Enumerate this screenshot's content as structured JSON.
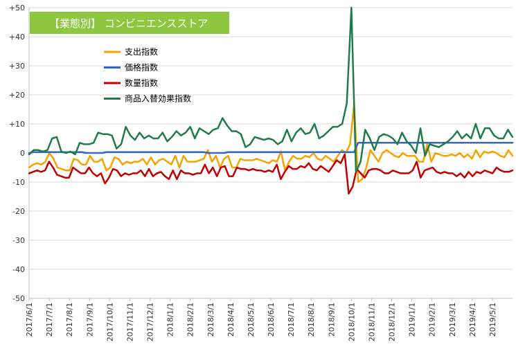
{
  "chart_data": {
    "type": "line",
    "title": "【業態別】 コンビニエンスストア",
    "title_bg": "#8DC63F",
    "ylim": [
      -50,
      50
    ],
    "y_ticks": [
      "-50",
      "-40",
      "-30",
      "-20",
      "-10",
      "0",
      "+10",
      "+20",
      "+30",
      "+40",
      "+50"
    ],
    "y_tick_values": [
      -50,
      -40,
      -30,
      -20,
      -10,
      0,
      10,
      20,
      30,
      40,
      50
    ],
    "x_tick_labels": [
      "2017/6/1",
      "2017/7/1",
      "2017/8/1",
      "2017/9/1",
      "2017/10/1",
      "2017/11/1",
      "2017/12/1",
      "2018/1/1",
      "2018/2/1",
      "2018/3/1",
      "2018/4/1",
      "2018/5/1",
      "2018/6/1",
      "2018/7/1",
      "2018/8/1",
      "2018/9/1",
      "2018/10/1",
      "2018/11/1",
      "2018/12/1",
      "2019/1/1",
      "2019/2/1",
      "2019/3/1",
      "2019/4/1",
      "2019/5/1"
    ],
    "grid": true,
    "legend_position": "upper-left",
    "series": [
      {
        "name": "支出指数",
        "color": "#F5A300",
        "values": [
          -5,
          -4,
          -3.5,
          -4,
          -3,
          0,
          -2,
          -5,
          -5.5,
          -6,
          -6,
          -2,
          -2.5,
          -4,
          -4,
          -1,
          -3,
          -3,
          -2,
          -6,
          -5,
          -1.5,
          -2,
          -4,
          -3,
          -3.5,
          -3,
          -3,
          -2,
          -4,
          -1.5,
          -4,
          -2.5,
          -2,
          -3,
          -4,
          -1,
          -5,
          -1,
          -3,
          -3,
          -3,
          -2.5,
          -2,
          1,
          -3,
          -1,
          -5,
          -2,
          -1,
          -5,
          -5,
          -2,
          -2.5,
          -2.5,
          -2.5,
          -2,
          -2.5,
          -3,
          -3.5,
          -2.5,
          -3,
          0.5,
          -6,
          -3,
          -1,
          -2,
          -2,
          -1,
          -1.5,
          0,
          -2,
          -2.5,
          -1,
          -2,
          -3,
          -1,
          1,
          0,
          3,
          17,
          -10,
          -9,
          -5,
          1,
          -1,
          -3,
          0,
          1,
          0,
          -1,
          -1.5,
          0,
          -1,
          -1,
          -1,
          -3,
          -3,
          3,
          -3,
          0,
          -0.5,
          -1,
          -1,
          -0.5,
          -1,
          0,
          -1.5,
          -0.5,
          -2,
          1,
          -1.5,
          0.5,
          0,
          0.5,
          0,
          -1,
          -1.5,
          1,
          -1
        ]
      },
      {
        "name": "価格指数",
        "color": "#3366C5",
        "values": [
          0,
          0.3,
          0.3,
          0.3,
          0.3,
          0.3,
          0.3,
          0.3,
          0.3,
          0.3,
          0.3,
          0.3,
          0.3,
          0.3,
          0,
          0,
          0,
          0,
          0,
          0.3,
          0.3,
          0.3,
          0.3,
          0.3,
          0.3,
          0.3,
          0.3,
          0.3,
          0.3,
          0.3,
          0.3,
          0.3,
          0.3,
          0.3,
          0.3,
          0.3,
          0.3,
          0.3,
          0.3,
          0.3,
          0.3,
          0.3,
          0.3,
          0.3,
          0,
          0,
          0,
          0,
          0,
          0.3,
          0.3,
          0.3,
          0.3,
          0.3,
          0.3,
          0.3,
          0.3,
          0.3,
          0.3,
          0.3,
          0.3,
          0.3,
          0.3,
          0.3,
          0.3,
          0.3,
          0.3,
          0.3,
          0.3,
          0.3,
          0.3,
          0.3,
          0.3,
          0.3,
          0.3,
          0.3,
          0.3,
          0.3,
          0.3,
          0.3,
          0.3,
          3.5,
          3.5,
          3.5,
          3.5,
          3.5,
          3.5,
          3.5,
          3.5,
          3.5,
          3.5,
          3.5,
          3.5,
          3.5,
          3.5,
          3.5,
          3.5,
          3.5,
          3.5,
          3.5,
          3.5,
          3.5,
          3.5,
          3.5,
          3.5,
          3.5,
          3.5,
          3.5,
          3.5,
          3.5,
          3.5,
          3.5,
          3.5,
          3.5,
          3.5,
          3.5,
          3.5,
          3.5,
          3.5,
          3.5
        ]
      },
      {
        "name": "数量指数",
        "color": "#C00000",
        "values": [
          -7,
          -6.5,
          -6,
          -6.5,
          -6,
          -3,
          -5,
          -7.5,
          -8,
          -8.5,
          -8.5,
          -5,
          -6,
          -7,
          -7,
          -5,
          -7,
          -8,
          -7,
          -10.5,
          -8.5,
          -5.5,
          -6,
          -8,
          -7,
          -7.5,
          -7,
          -7,
          -6,
          -8,
          -5.5,
          -8,
          -7,
          -6.5,
          -8,
          -9,
          -6,
          -9,
          -6,
          -7,
          -7,
          -7.5,
          -7,
          -7,
          -4,
          -7,
          -5,
          -8,
          -5,
          -4.5,
          -8,
          -8,
          -5,
          -5.5,
          -5.5,
          -6,
          -5.5,
          -6,
          -6,
          -6.5,
          -6,
          -6.5,
          -4,
          -9,
          -6.5,
          -4.5,
          -5.5,
          -5.5,
          -4.5,
          -5,
          -3.5,
          -5.5,
          -6,
          -4.5,
          -5.5,
          -6.5,
          -4.5,
          -2.5,
          -3.5,
          -0.5,
          -14,
          -11.5,
          -5.5,
          -7,
          -8.5,
          -6,
          -5.5,
          -5.5,
          -6,
          -7,
          -7,
          -6,
          -6.5,
          -7,
          -7,
          -7,
          -6,
          -3,
          -8.5,
          -6,
          -5.5,
          -5,
          -6.5,
          -7,
          -6.5,
          -7,
          -7,
          -8,
          -7,
          -8.5,
          -6.5,
          -8,
          -6.5,
          -7,
          -6,
          -6.5,
          -7,
          -5,
          -6,
          -6.5,
          -6.5,
          -6
        ]
      },
      {
        "name": "商品入替効果指数",
        "color": "#217A4C",
        "values": [
          -0.5,
          1,
          1,
          0.5,
          1,
          5,
          5.5,
          0.5,
          0,
          0.5,
          -0.5,
          3.5,
          3,
          3,
          3.5,
          7,
          6.5,
          6.5,
          6,
          1.5,
          3,
          9,
          6,
          4.5,
          7,
          5,
          6,
          5,
          5,
          7,
          4,
          5.5,
          7.5,
          6,
          7,
          9,
          5,
          8.5,
          7.5,
          6.5,
          8,
          8.5,
          12,
          9.5,
          7.5,
          7.5,
          6.5,
          2,
          3,
          5.5,
          5,
          4.5,
          5,
          4.5,
          3,
          4,
          8,
          4,
          7,
          8.5,
          6.5,
          7,
          10,
          5,
          6,
          7.5,
          9,
          9,
          10,
          17,
          50,
          -6.5,
          -3,
          8,
          5,
          1,
          5.5,
          6.5,
          6,
          5,
          3,
          7,
          4,
          2.5,
          0,
          8.5,
          -1,
          3,
          2.5,
          2,
          3,
          4,
          5.5,
          7.5,
          5,
          6.5,
          5,
          10,
          5,
          8.5,
          8.5,
          6,
          5,
          5,
          8,
          5.5
        ]
      }
    ]
  }
}
